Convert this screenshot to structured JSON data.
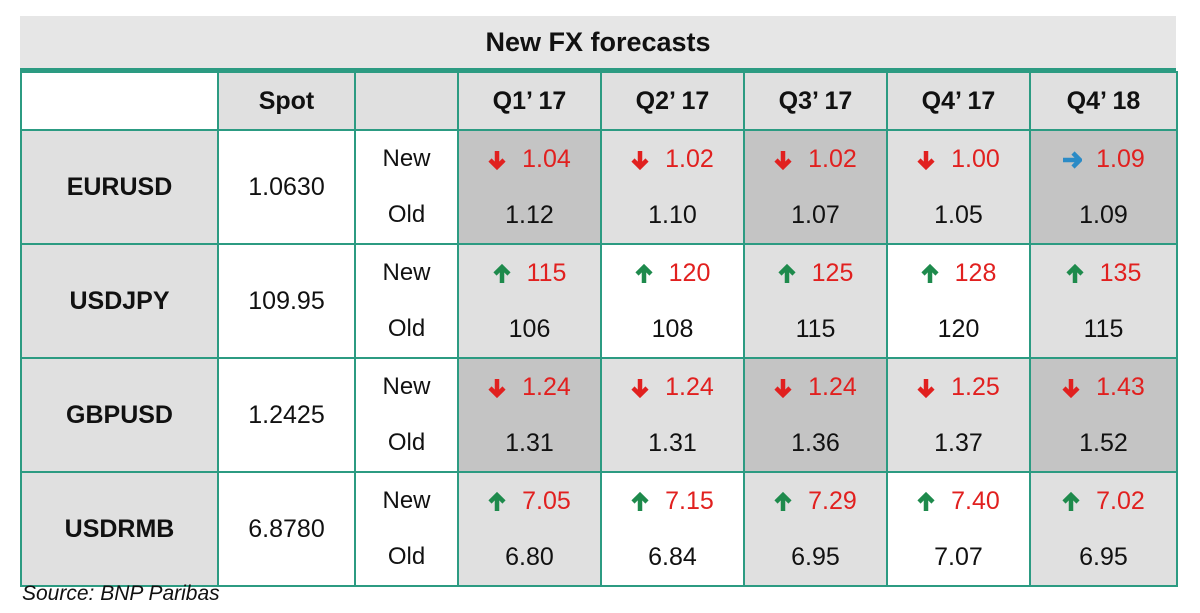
{
  "title": "New FX forecasts",
  "source": "Source: BNP Paribas",
  "colors": {
    "border": "#2c9b82",
    "down": "#e1201f",
    "up": "#1e8a4c",
    "flat": "#2b8bc6",
    "new_value": "#e1201f"
  },
  "chart_data": {
    "type": "table",
    "title": "New FX forecasts",
    "columns": [
      "",
      "Spot",
      "",
      "Q1’ 17",
      "Q2’ 17",
      "Q3’ 17",
      "Q4’ 17",
      "Q4’ 18"
    ],
    "row_labels": {
      "new": "New",
      "old": "Old"
    },
    "rows": [
      {
        "pair": "EURUSD",
        "spot": "1.0630",
        "new": [
          "1.04",
          "1.02",
          "1.02",
          "1.00",
          "1.09"
        ],
        "direction": [
          "down",
          "down",
          "down",
          "down",
          "flat"
        ],
        "old": [
          "1.12",
          "1.10",
          "1.07",
          "1.05",
          "1.09"
        ]
      },
      {
        "pair": "USDJPY",
        "spot": "109.95",
        "new": [
          "115",
          "120",
          "125",
          "128",
          "135"
        ],
        "direction": [
          "up",
          "up",
          "up",
          "up",
          "up"
        ],
        "old": [
          "106",
          "108",
          "115",
          "120",
          "115"
        ]
      },
      {
        "pair": "GBPUSD",
        "spot": "1.2425",
        "new": [
          "1.24",
          "1.24",
          "1.24",
          "1.25",
          "1.43"
        ],
        "direction": [
          "down",
          "down",
          "down",
          "down",
          "down"
        ],
        "old": [
          "1.31",
          "1.31",
          "1.36",
          "1.37",
          "1.52"
        ]
      },
      {
        "pair": "USDRMB",
        "spot": "6.8780",
        "new": [
          "7.05",
          "7.15",
          "7.29",
          "7.40",
          "7.02"
        ],
        "direction": [
          "up",
          "up",
          "up",
          "up",
          "up"
        ],
        "old": [
          "6.80",
          "6.84",
          "6.95",
          "7.07",
          "6.95"
        ]
      }
    ]
  }
}
